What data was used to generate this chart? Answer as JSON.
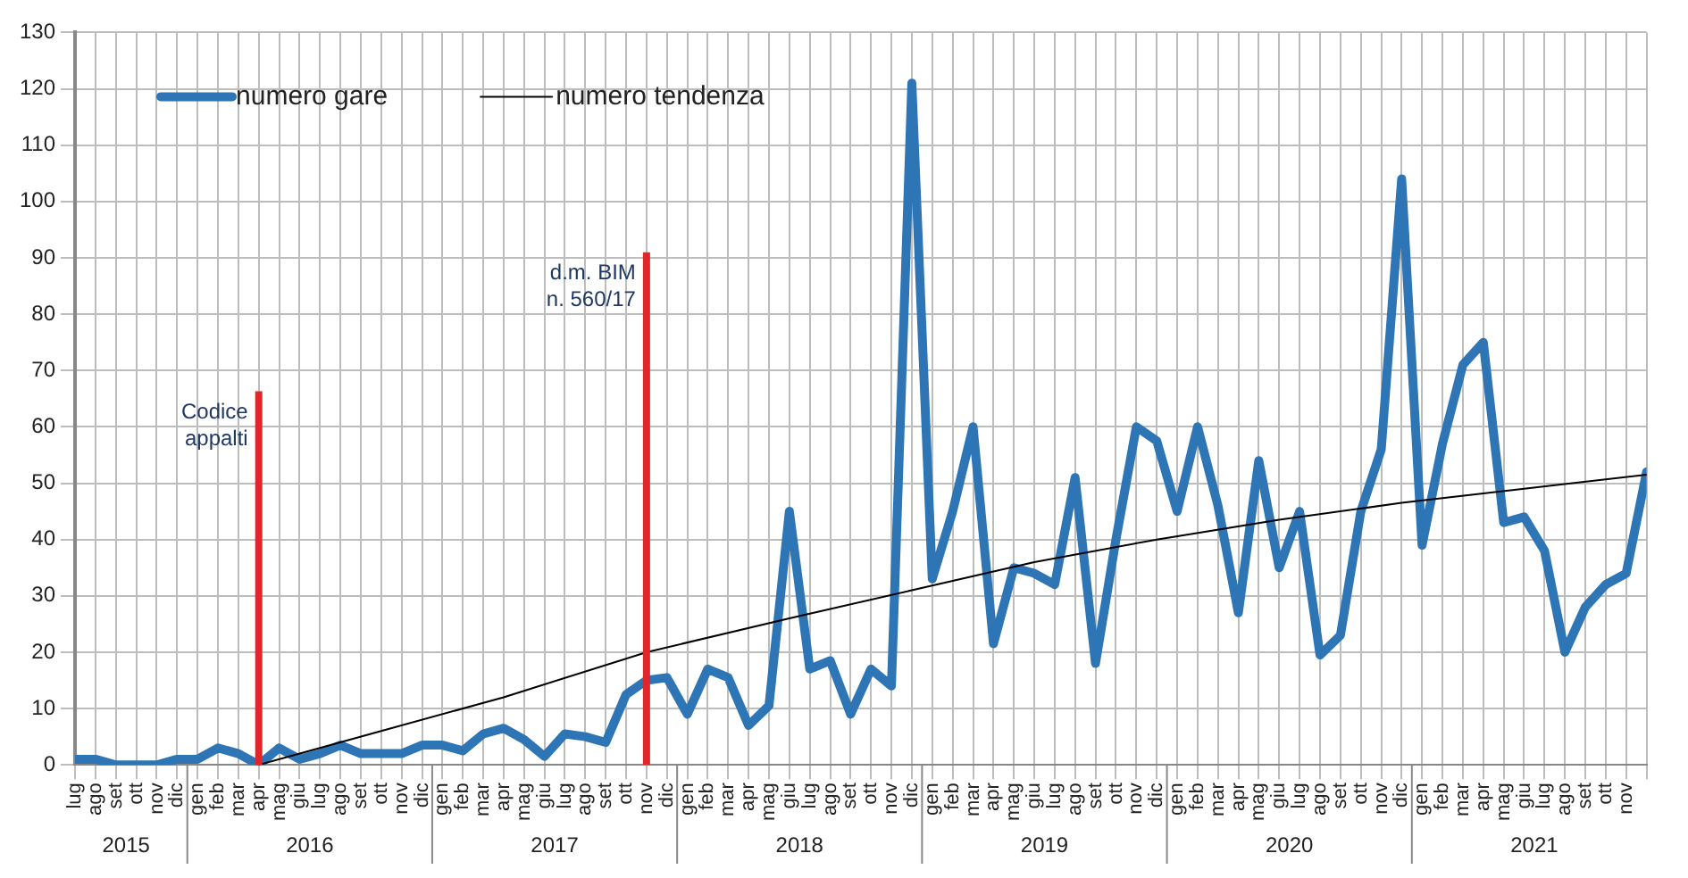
{
  "chart_data": {
    "type": "line",
    "x": [
      "2015-07",
      "2015-08",
      "2015-09",
      "2015-10",
      "2015-11",
      "2015-12",
      "2016-01",
      "2016-02",
      "2016-03",
      "2016-04",
      "2016-05",
      "2016-06",
      "2016-07",
      "2016-08",
      "2016-09",
      "2016-10",
      "2016-11",
      "2016-12",
      "2017-01",
      "2017-02",
      "2017-03",
      "2017-04",
      "2017-05",
      "2017-06",
      "2017-07",
      "2017-08",
      "2017-09",
      "2017-10",
      "2017-11",
      "2017-12",
      "2018-01",
      "2018-02",
      "2018-03",
      "2018-04",
      "2018-05",
      "2018-06",
      "2018-07",
      "2018-08",
      "2018-09",
      "2018-10",
      "2018-11",
      "2018-12",
      "2019-01",
      "2019-02",
      "2019-03",
      "2019-04",
      "2019-05",
      "2019-06",
      "2019-07",
      "2019-08",
      "2019-09",
      "2019-10",
      "2019-11",
      "2019-12",
      "2020-01",
      "2020-02",
      "2020-03",
      "2020-04",
      "2020-05",
      "2020-06",
      "2020-07",
      "2020-08",
      "2020-09",
      "2020-10",
      "2020-11",
      "2020-12",
      "2021-01",
      "2021-02",
      "2021-03",
      "2021-04",
      "2021-05",
      "2021-06",
      "2021-07",
      "2021-08",
      "2021-09",
      "2021-10",
      "2021-11",
      "2021-12"
    ],
    "series": [
      {
        "name": "numero gare",
        "color": "#2e75b6",
        "values": [
          1,
          1,
          0,
          0,
          0,
          1,
          1,
          3,
          2,
          0,
          3,
          1,
          2,
          3.5,
          2,
          2,
          2,
          3.5,
          3.5,
          2.5,
          5.5,
          6.5,
          4.5,
          1.5,
          5.5,
          5,
          4,
          12.5,
          15,
          15.5,
          9,
          17,
          15.5,
          7,
          10.5,
          45,
          17,
          18.5,
          9,
          17,
          14,
          121,
          33,
          45,
          60,
          21.5,
          35,
          34,
          32,
          51,
          18,
          40,
          60,
          57.5,
          45,
          60,
          46,
          27,
          54,
          35,
          45,
          19.5,
          23,
          45,
          56,
          104,
          39,
          57,
          71,
          75,
          43,
          44,
          38,
          20,
          28,
          32,
          34,
          52
        ]
      },
      {
        "name": "numero tendenza",
        "color": "#000000",
        "x": [
          "2016-04",
          "2016-10",
          "2017-04",
          "2017-11",
          "2018-06",
          "2018-12",
          "2019-06",
          "2019-12",
          "2020-06",
          "2020-12",
          "2021-06",
          "2021-12"
        ],
        "values": [
          0,
          6,
          12,
          20,
          26,
          31,
          36,
          40,
          43.5,
          46.5,
          49,
          51.5
        ]
      }
    ],
    "xlim": [
      "2015-07",
      "2021-12"
    ],
    "xticks": [
      {
        "value": "2015-07",
        "label": "lug"
      },
      {
        "value": "2015-08",
        "label": "ago"
      },
      {
        "value": "2015-09",
        "label": "set"
      },
      {
        "value": "2015-10",
        "label": "ott"
      },
      {
        "value": "2015-11",
        "label": "nov"
      },
      {
        "value": "2015-12",
        "label": "dic"
      },
      {
        "value": "2016-01",
        "label": "gen"
      },
      {
        "value": "2016-02",
        "label": "feb"
      },
      {
        "value": "2016-03",
        "label": "mar"
      },
      {
        "value": "2016-04",
        "label": "apr"
      },
      {
        "value": "2016-05",
        "label": "mag"
      },
      {
        "value": "2016-06",
        "label": "giu"
      },
      {
        "value": "2016-07",
        "label": "lug"
      },
      {
        "value": "2016-08",
        "label": "ago"
      },
      {
        "value": "2016-09",
        "label": "set"
      },
      {
        "value": "2016-10",
        "label": "ott"
      },
      {
        "value": "2016-11",
        "label": "nov"
      },
      {
        "value": "2016-12",
        "label": "dic"
      },
      {
        "value": "2017-01",
        "label": "gen"
      },
      {
        "value": "2017-02",
        "label": "feb"
      },
      {
        "value": "2017-03",
        "label": "mar"
      },
      {
        "value": "2017-04",
        "label": "apr"
      },
      {
        "value": "2017-05",
        "label": "mag"
      },
      {
        "value": "2017-06",
        "label": "giu"
      },
      {
        "value": "2017-07",
        "label": "lug"
      },
      {
        "value": "2017-08",
        "label": "ago"
      },
      {
        "value": "2017-09",
        "label": "set"
      },
      {
        "value": "2017-10",
        "label": "ott"
      },
      {
        "value": "2017-11",
        "label": "nov"
      },
      {
        "value": "2017-12",
        "label": "dic"
      },
      {
        "value": "2018-01",
        "label": "gen"
      },
      {
        "value": "2018-02",
        "label": "feb"
      },
      {
        "value": "2018-03",
        "label": "mar"
      },
      {
        "value": "2018-04",
        "label": "apr"
      },
      {
        "value": "2018-05",
        "label": "mag"
      },
      {
        "value": "2018-06",
        "label": "giu"
      },
      {
        "value": "2018-07",
        "label": "lug"
      },
      {
        "value": "2018-08",
        "label": "ago"
      },
      {
        "value": "2018-09",
        "label": "set"
      },
      {
        "value": "2018-10",
        "label": "ott"
      },
      {
        "value": "2018-11",
        "label": "nov"
      },
      {
        "value": "2018-12",
        "label": "dic"
      },
      {
        "value": "2019-01",
        "label": "gen"
      },
      {
        "value": "2019-02",
        "label": "feb"
      },
      {
        "value": "2019-03",
        "label": "mar"
      },
      {
        "value": "2019-04",
        "label": "apr"
      },
      {
        "value": "2019-05",
        "label": "mag"
      },
      {
        "value": "2019-06",
        "label": "giu"
      },
      {
        "value": "2019-07",
        "label": "lug"
      },
      {
        "value": "2019-08",
        "label": "ago"
      },
      {
        "value": "2019-09",
        "label": "set"
      },
      {
        "value": "2019-10",
        "label": "ott"
      },
      {
        "value": "2019-11",
        "label": "nov"
      },
      {
        "value": "2019-12",
        "label": "dic"
      },
      {
        "value": "2020-01",
        "label": "gen"
      },
      {
        "value": "2020-02",
        "label": "feb"
      },
      {
        "value": "2020-03",
        "label": "mar"
      },
      {
        "value": "2020-04",
        "label": "apr"
      },
      {
        "value": "2020-05",
        "label": "mag"
      },
      {
        "value": "2020-06",
        "label": "giu"
      },
      {
        "value": "2020-07",
        "label": "lug"
      },
      {
        "value": "2020-08",
        "label": "ago"
      },
      {
        "value": "2020-09",
        "label": "set"
      },
      {
        "value": "2020-10",
        "label": "ott"
      },
      {
        "value": "2020-11",
        "label": "nov"
      },
      {
        "value": "2020-12",
        "label": "dic"
      },
      {
        "value": "2021-01",
        "label": "gen"
      },
      {
        "value": "2021-02",
        "label": "feb"
      },
      {
        "value": "2021-03",
        "label": "mar"
      },
      {
        "value": "2021-04",
        "label": "apr"
      },
      {
        "value": "2021-05",
        "label": "mag"
      },
      {
        "value": "2021-06",
        "label": "giu"
      },
      {
        "value": "2021-07",
        "label": "lug"
      },
      {
        "value": "2021-08",
        "label": "ago"
      },
      {
        "value": "2021-09",
        "label": "set"
      },
      {
        "value": "2021-10",
        "label": "ott"
      },
      {
        "value": "2021-11",
        "label": "nov"
      },
      {
        "value": "2021-12",
        "label": null
      }
    ],
    "ylim": [
      0,
      130
    ],
    "yticks": [
      0,
      10,
      20,
      30,
      40,
      50,
      60,
      70,
      80,
      90,
      100,
      110,
      120,
      130
    ],
    "grid": true,
    "legend": "top left",
    "annotations": [
      "2015",
      "2016",
      "2017",
      "2018",
      "2019",
      "2020",
      "2021"
    ],
    "ref_lines": [
      {
        "axis": "x",
        "value": "2016-04",
        "label": "Codice appalti",
        "color": "#e0262b"
      },
      {
        "axis": "x",
        "value": "2017-11",
        "label": "d.m. BIM n. 560/17",
        "color": "#e0262b"
      }
    ]
  }
}
